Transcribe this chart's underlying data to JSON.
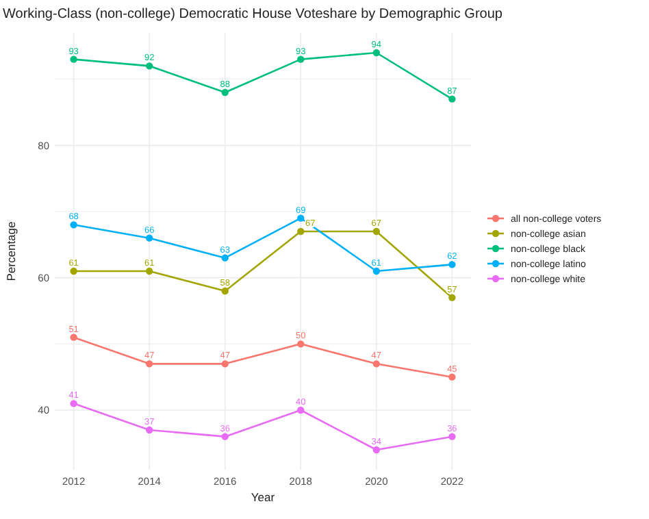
{
  "chart_data": {
    "type": "line",
    "title": "Working-Class (non-college) Democratic House Voteshare by Demographic Group",
    "xlabel": "Year",
    "ylabel": "Percentage",
    "x": [
      2012,
      2014,
      2016,
      2018,
      2020,
      2022
    ],
    "xlim": [
      2011.5,
      2022.5
    ],
    "xticks": [
      2012,
      2014,
      2016,
      2018,
      2020,
      2022
    ],
    "ylim": [
      31,
      97
    ],
    "yticks": [
      40,
      {
        "value": 50,
        "label": null
      },
      60,
      {
        "value": 70,
        "label": null
      },
      80,
      {
        "value": 90,
        "label": null
      }
    ],
    "grid": true,
    "legend": "right",
    "marker": "circle",
    "line_style": "solid",
    "data_labels": true,
    "series": [
      {
        "name": "all non-college voters",
        "color": "#f8766d",
        "values": [
          51,
          47,
          47,
          50,
          47,
          45
        ]
      },
      {
        "name": "non-college asian",
        "color": "#a3a500",
        "values": [
          61,
          61,
          58,
          67,
          67,
          57
        ]
      },
      {
        "name": "non-college black",
        "color": "#00bf7d",
        "values": [
          93,
          92,
          88,
          93,
          94,
          87
        ]
      },
      {
        "name": "non-college latino",
        "color": "#00b0f6",
        "values": [
          68,
          66,
          63,
          69,
          61,
          62
        ]
      },
      {
        "name": "non-college white",
        "color": "#e76bf3",
        "values": [
          41,
          37,
          36,
          40,
          34,
          36
        ]
      }
    ]
  }
}
